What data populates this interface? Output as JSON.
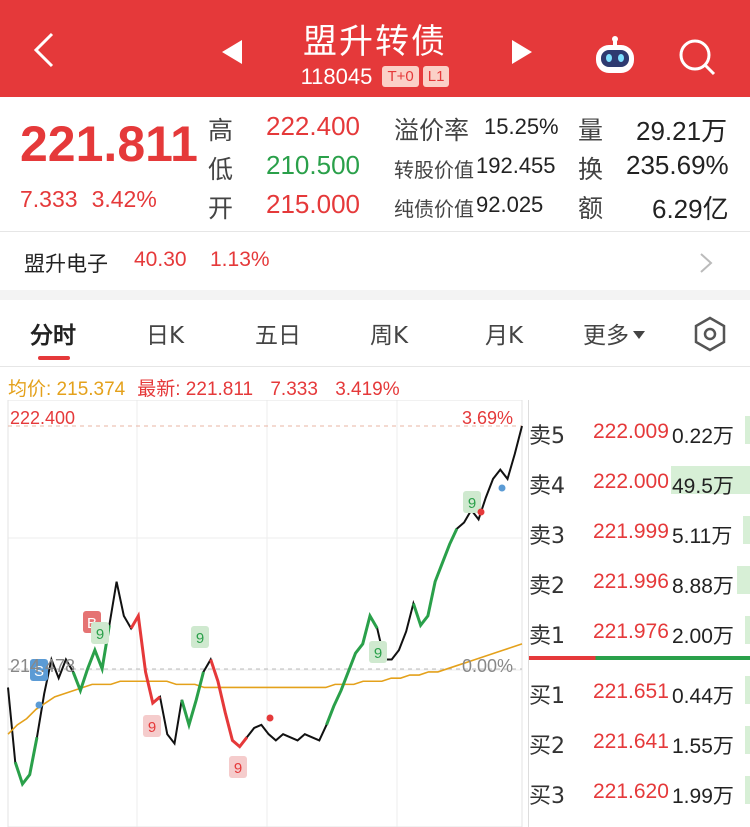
{
  "header": {
    "title": "盟升转债",
    "code": "118045",
    "tags": [
      "T+0",
      "L1"
    ]
  },
  "quote": {
    "price": "221.811",
    "change": "7.333",
    "change_pct": "3.42%",
    "high_label": "高",
    "high": "222.400",
    "low_label": "低",
    "low": "210.500",
    "open_label": "开",
    "open": "215.000",
    "premium_label": "溢价率",
    "premium": "15.25%",
    "conv_value_label": "转股价值",
    "conv_value": "192.455",
    "bond_value_label": "纯债价值",
    "bond_value": "92.025",
    "volume_label": "量",
    "volume": "29.21万",
    "turnover_label": "换",
    "turnover": "235.69%",
    "amount_label": "额",
    "amount": "6.29亿"
  },
  "underlying": {
    "name": "盟升电子",
    "price": "40.30",
    "change_pct": "1.13%"
  },
  "tabs": [
    {
      "label": "分时",
      "active": true
    },
    {
      "label": "日K"
    },
    {
      "label": "五日"
    },
    {
      "label": "周K"
    },
    {
      "label": "月K"
    },
    {
      "label": "更多"
    }
  ],
  "info_line": {
    "avg_label": "均价: 215.374",
    "latest_label": "最新: 221.811",
    "change": "7.333",
    "change_pct": "3.419%"
  },
  "chart_data": {
    "type": "line",
    "ylabel_top": "222.400",
    "ylabel_top_pct": "3.69%",
    "baseline_label": "214.478",
    "baseline_pct": "0.00%",
    "markers": [
      "S",
      "B",
      "9"
    ],
    "series": [
      {
        "values": [
          214.0,
          211.6,
          210.9,
          211.2,
          212.4,
          213.8,
          214.9,
          214.3,
          214.9,
          214.5,
          213.9,
          214.6,
          215.2,
          214.6,
          216.0,
          217.4,
          216.3,
          215.9,
          216.3,
          214.5,
          213.5,
          213.7,
          212.5,
          212.2,
          213.6,
          212.8,
          213.6,
          214.5,
          214.9,
          214.2,
          213.2,
          212.3,
          212.1,
          212.4,
          212.7,
          212.8,
          212.5,
          212.3,
          212.5,
          212.4,
          212.3,
          212.5,
          212.4,
          212.3,
          212.8,
          213.4,
          213.9,
          214.5,
          215.1,
          215.4,
          216.3,
          215.9,
          214.9,
          214.9,
          215.2,
          215.8,
          216.7,
          216.0,
          216.3,
          217.4,
          218.0,
          218.6,
          219.1,
          219.3,
          219.7,
          219.4,
          220.1,
          220.7,
          221.0,
          220.7,
          221.5,
          222.4
        ]
      },
      {
        "values": [
          212.5,
          212.8,
          213.0,
          213.3,
          213.5,
          213.7,
          213.8,
          213.9,
          214.0,
          214.1,
          214.1,
          214.1,
          214.2,
          214.2,
          214.2,
          214.2,
          214.2,
          214.2,
          214.1,
          214.1,
          214.1,
          214.0,
          214.0,
          214.0,
          214.0,
          214.0,
          214.0,
          214.0,
          214.0,
          214.0,
          214.0,
          214.0,
          214.0,
          214.0,
          214.0,
          214.1,
          214.1,
          214.1,
          214.2,
          214.2,
          214.2,
          214.3,
          214.3,
          214.4,
          214.4,
          214.5,
          214.5,
          214.6,
          214.7,
          214.8,
          214.9,
          215.0,
          215.1,
          215.2,
          215.3,
          215.4
        ]
      }
    ]
  },
  "order_book": {
    "asks": [
      {
        "label": "卖5",
        "price": "222.009",
        "vol": "0.22万",
        "frac": 0.02
      },
      {
        "label": "卖4",
        "price": "222.000",
        "vol": "49.5万",
        "frac": 1.0
      },
      {
        "label": "卖3",
        "price": "221.999",
        "vol": "5.11万",
        "frac": 0.1
      },
      {
        "label": "卖2",
        "price": "221.996",
        "vol": "8.88万",
        "frac": 0.18
      },
      {
        "label": "卖1",
        "price": "221.976",
        "vol": "2.00万",
        "frac": 0.04
      }
    ],
    "bids": [
      {
        "label": "买1",
        "price": "221.651",
        "vol": "0.44万",
        "frac": 0.01
      },
      {
        "label": "买2",
        "price": "221.641",
        "vol": "1.55万",
        "frac": 0.03
      },
      {
        "label": "买3",
        "price": "221.620",
        "vol": "1.99万",
        "frac": 0.04
      }
    ]
  },
  "colors": {
    "up": "#e5393a",
    "down": "#2aa04a",
    "avg": "#e4a11b",
    "header_bg": "#e5393a"
  }
}
